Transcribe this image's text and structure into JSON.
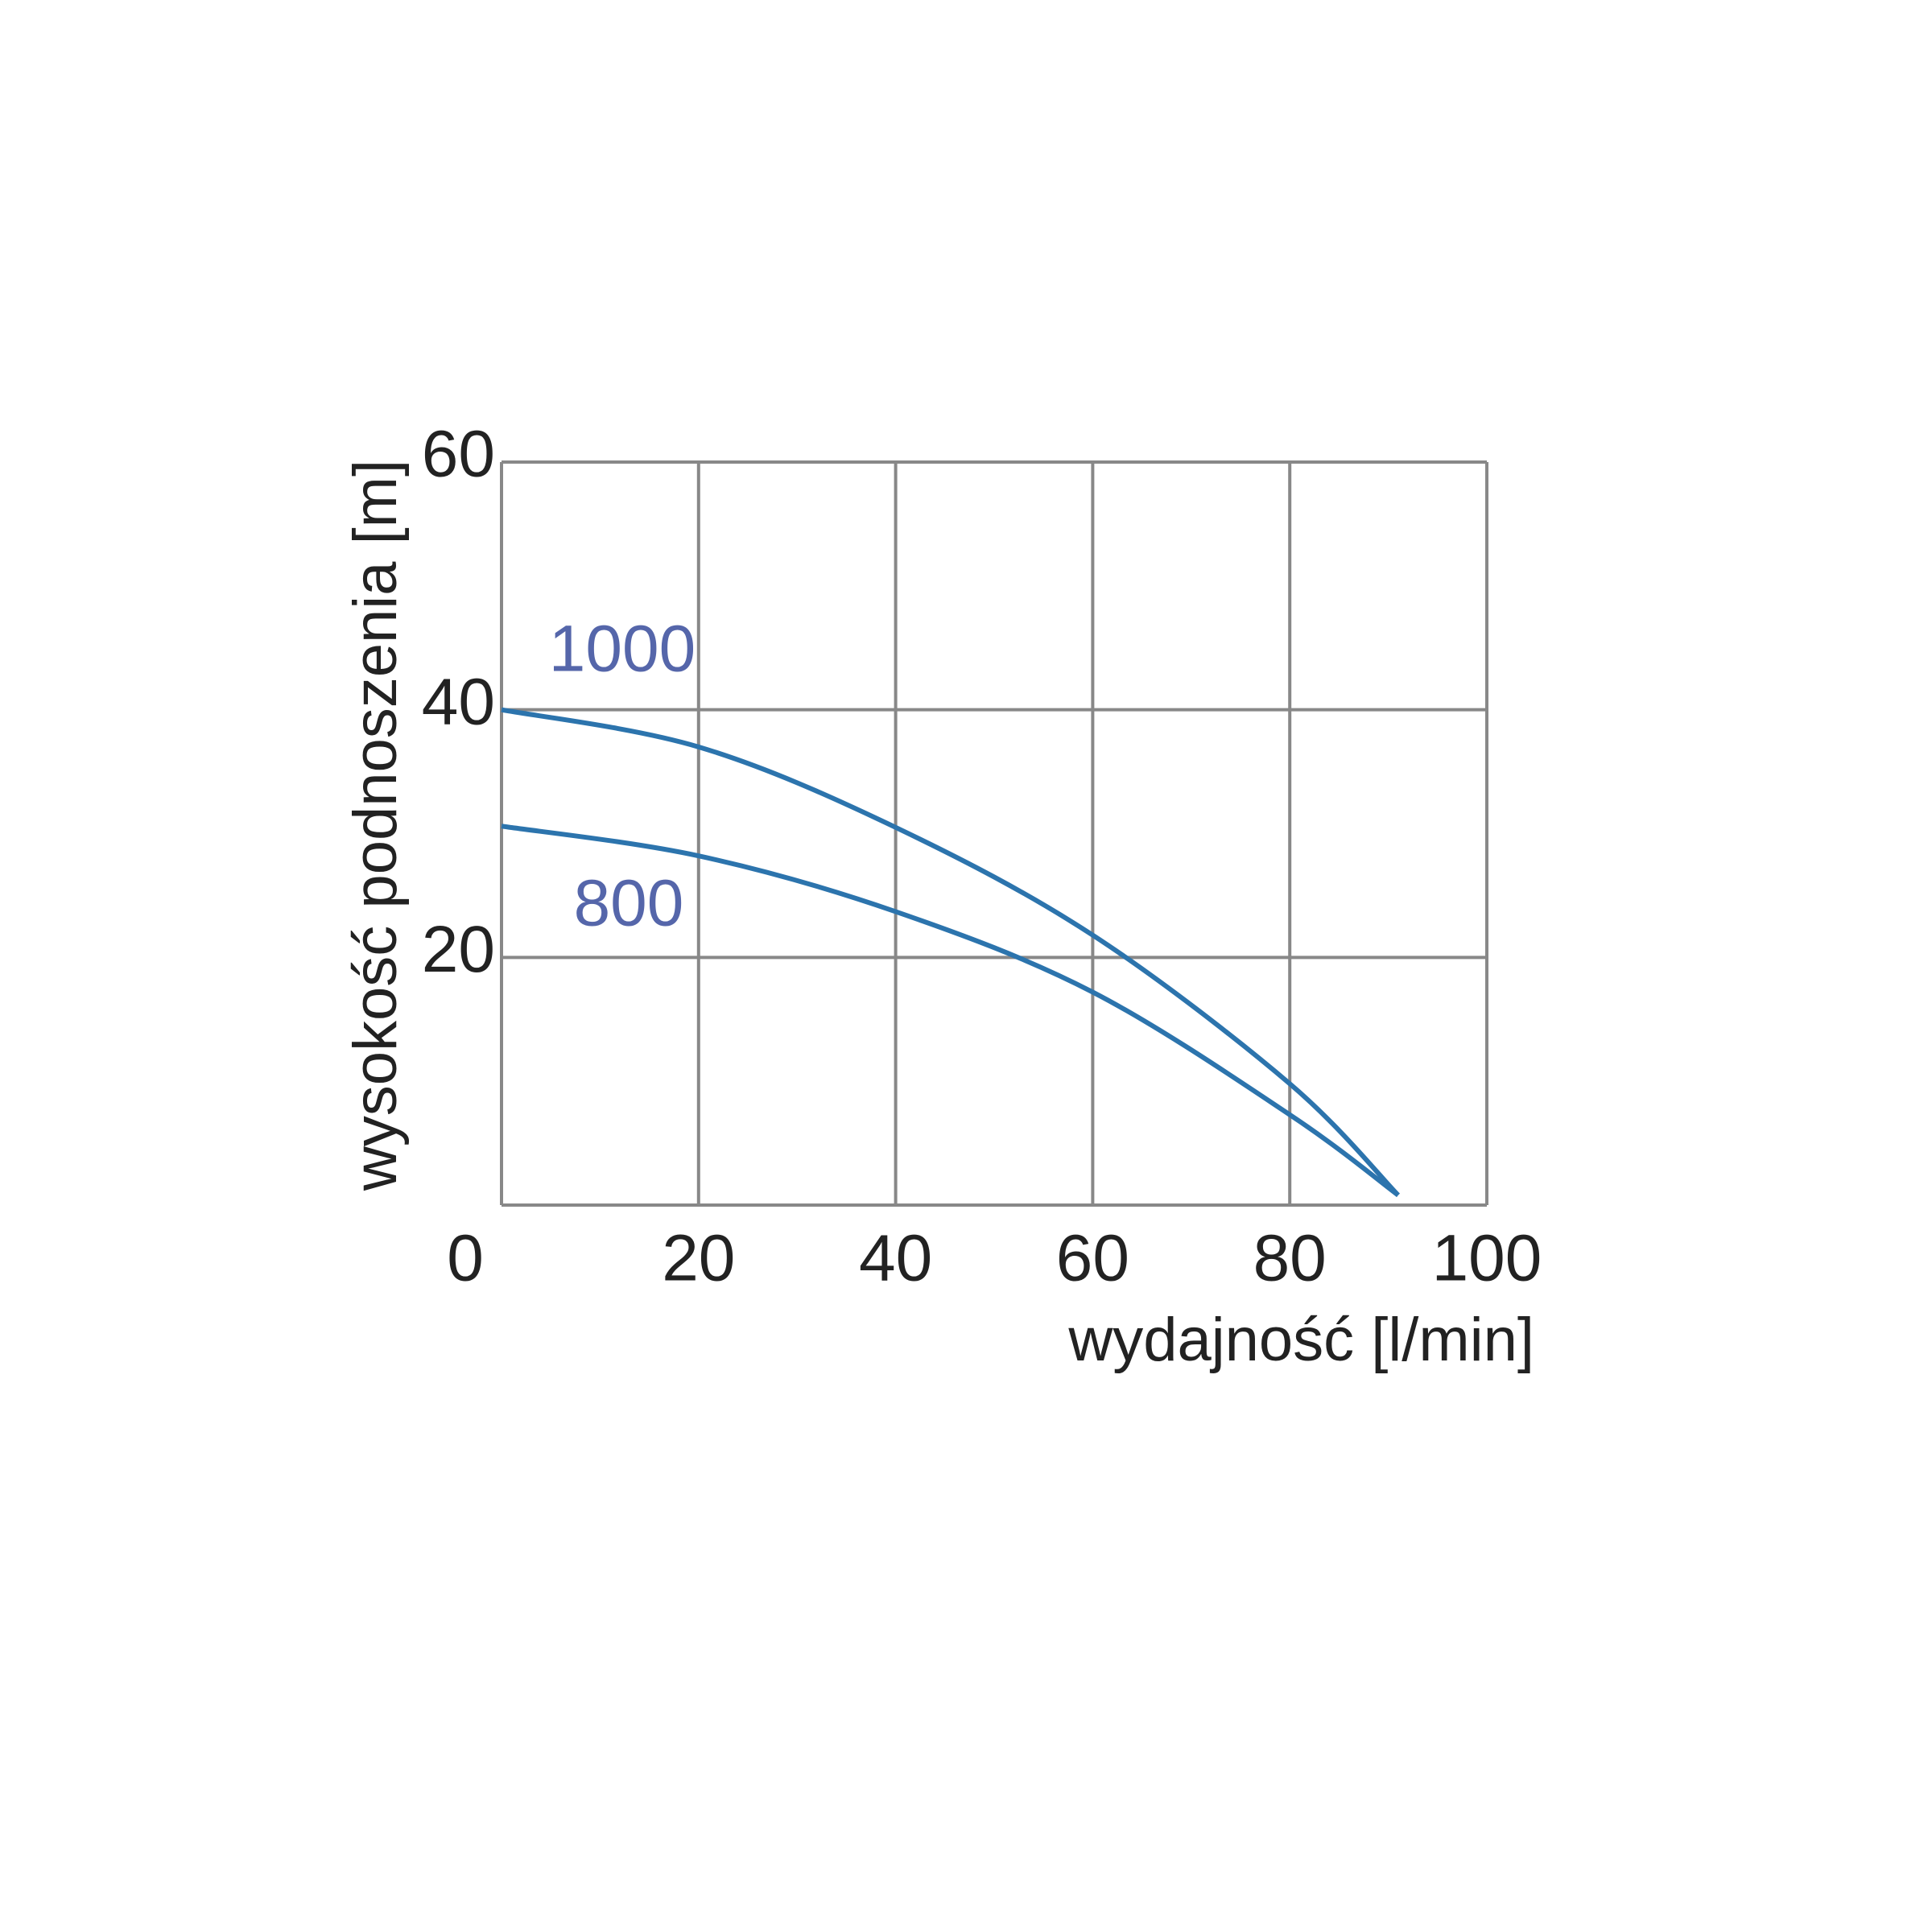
{
  "chart_data": {
    "type": "line",
    "x_label": "wydajność  [l/min]",
    "y_label": "wysokość podnoszenia [m]",
    "xlim": [
      0,
      100
    ],
    "xticks": [
      0,
      20,
      40,
      60,
      80,
      100
    ],
    "ylim": [
      0,
      60
    ],
    "yticks": [
      0,
      20,
      40,
      60
    ],
    "grid": true,
    "grid_color": "#888888",
    "x": [
      0,
      20,
      40,
      60,
      80,
      91
    ],
    "series": [
      {
        "name": "1000",
        "color": "#2c74ad",
        "values": [
          40,
          37,
          30.5,
          21.8,
          9.8,
          0.8
        ]
      },
      {
        "name": "800",
        "color": "#2c74ad",
        "values": [
          30.6,
          28.2,
          23.7,
          17.2,
          7.3,
          0.8
        ]
      }
    ]
  }
}
